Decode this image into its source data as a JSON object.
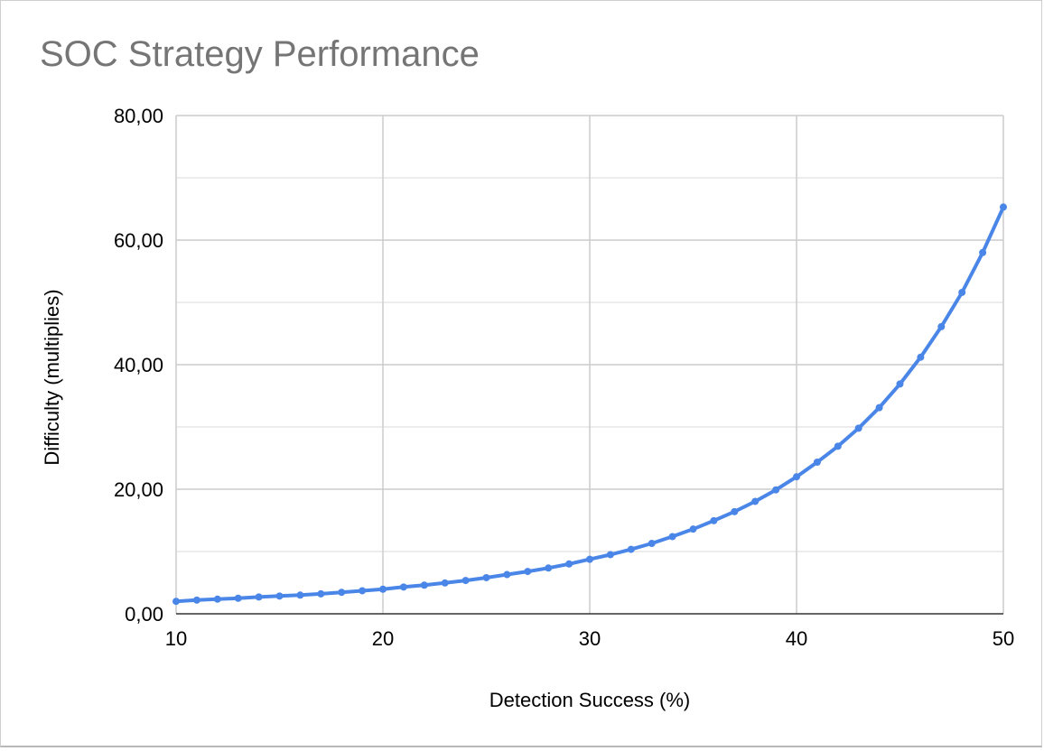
{
  "chart_data": {
    "type": "line",
    "title": "SOC Strategy Performance",
    "xlabel": "Detection Success (%)",
    "ylabel": "Difficulty (multiplies)",
    "xlim": [
      10,
      50
    ],
    "ylim": [
      0,
      80
    ],
    "x_ticks": [
      "10",
      "20",
      "30",
      "40",
      "50"
    ],
    "y_ticks": [
      "0,00",
      "20,00",
      "40,00",
      "60,00",
      "80,00"
    ],
    "grid": true,
    "legend": "none",
    "colors": {
      "line": "#4a86e8",
      "grid_major": "#cccccc",
      "grid_minor": "#e6e6e6"
    },
    "series": [
      {
        "x": [
          10,
          11,
          12,
          13,
          14,
          15,
          16,
          17,
          18,
          19,
          20,
          21,
          22,
          23,
          24,
          25,
          26,
          27,
          28,
          29,
          30,
          31,
          32,
          33,
          34,
          35,
          36,
          37,
          38,
          39,
          40,
          41,
          42,
          43,
          44,
          45,
          46,
          47,
          48,
          49,
          50
        ],
        "values": [
          2.0,
          2.2,
          2.35,
          2.5,
          2.7,
          2.85,
          3.0,
          3.2,
          3.45,
          3.7,
          3.95,
          4.3,
          4.6,
          4.95,
          5.35,
          5.8,
          6.3,
          6.8,
          7.35,
          8.0,
          8.75,
          9.5,
          10.35,
          11.3,
          12.4,
          13.6,
          14.95,
          16.4,
          18.05,
          19.9,
          22.0,
          24.35,
          26.9,
          29.8,
          33.1,
          36.9,
          41.2,
          46.1,
          51.6,
          58.0,
          65.3
        ]
      }
    ]
  }
}
